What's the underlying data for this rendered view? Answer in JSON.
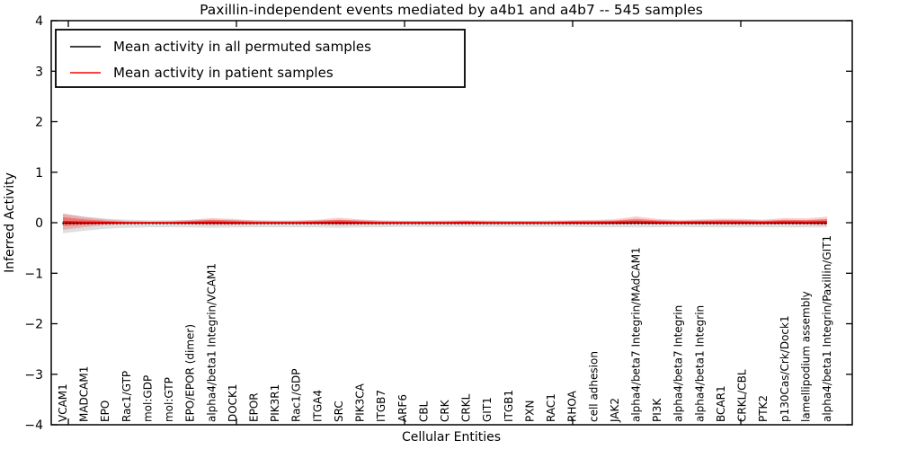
{
  "chart_data": {
    "type": "line",
    "title": "Paxillin-independent events mediated by a4b1 and a4b7 -- 545 samples",
    "xlabel": "Cellular Entities",
    "ylabel": "Inferred Activity",
    "ylim": [
      -4,
      4
    ],
    "yticks": [
      4,
      3,
      2,
      1,
      0,
      -1,
      -2,
      -3,
      -4
    ],
    "grid": false,
    "legend_position": "upper left",
    "categories": [
      "VCAM1",
      "MADCAM1",
      "EPO",
      "Rac1/GTP",
      "mol:GDP",
      "mol:GTP",
      "EPO/EPOR (dimer)",
      "alpha4/beta1 Integrin/VCAM1",
      "DOCK1",
      "EPOR",
      "PIK3R1",
      "Rac1/GDP",
      "ITGA4",
      "SRC",
      "PIK3CA",
      "ITGB7",
      "ARF6",
      "CBL",
      "CRK",
      "CRKL",
      "GIT1",
      "ITGB1",
      "PXN",
      "RAC1",
      "RHOA",
      "cell adhesion",
      "JAK2",
      "alpha4/beta7 Integrin/MAdCAM1",
      "PI3K",
      "alpha4/beta7 Integrin",
      "alpha4/beta1 Integrin",
      "BCAR1",
      "CRKL/CBL",
      "PTK2",
      "p130Cas/Crk/Dock1",
      "lamellipodium assembly",
      "alpha4/beta1 Integrin/Paxillin/GIT1"
    ],
    "series": [
      {
        "name": "Mean activity in all permuted samples",
        "color": "#000000",
        "band_color": "rgba(128,128,128,0.25)",
        "values": [
          -0.01,
          -0.01,
          -0.01,
          -0.01,
          -0.01,
          -0.01,
          -0.01,
          -0.01,
          -0.01,
          -0.01,
          -0.01,
          -0.01,
          -0.01,
          -0.01,
          -0.01,
          -0.01,
          -0.01,
          -0.01,
          -0.01,
          -0.01,
          -0.01,
          -0.01,
          -0.01,
          -0.01,
          -0.01,
          -0.01,
          -0.01,
          -0.01,
          -0.01,
          -0.01,
          -0.01,
          -0.01,
          -0.01,
          -0.01,
          -0.01,
          -0.01,
          -0.01
        ],
        "band_upper": [
          0.19,
          0.13,
          0.09,
          0.07,
          0.06,
          0.06,
          0.065,
          0.07,
          0.065,
          0.06,
          0.055,
          0.055,
          0.06,
          0.065,
          0.06,
          0.055,
          0.05,
          0.05,
          0.05,
          0.05,
          0.05,
          0.05,
          0.05,
          0.05,
          0.05,
          0.055,
          0.055,
          0.06,
          0.055,
          0.05,
          0.055,
          0.06,
          0.06,
          0.055,
          0.06,
          0.06,
          0.065
        ],
        "band_lower": [
          0.2,
          0.15,
          0.11,
          0.09,
          0.08,
          0.08,
          0.085,
          0.09,
          0.085,
          0.08,
          0.08,
          0.08,
          0.085,
          0.09,
          0.085,
          0.08,
          0.075,
          0.075,
          0.075,
          0.075,
          0.075,
          0.075,
          0.075,
          0.075,
          0.075,
          0.08,
          0.08,
          0.085,
          0.08,
          0.075,
          0.08,
          0.085,
          0.085,
          0.08,
          0.085,
          0.085,
          0.085
        ]
      },
      {
        "name": "Mean activity in patient samples",
        "color": "#ff0000",
        "band_color": "rgba(255,0,0,0.2)",
        "band_inner_color": "rgba(255,0,0,0.35)",
        "values": [
          0.02,
          0.01,
          0.005,
          0.0,
          0.0,
          0.0,
          0.005,
          0.01,
          0.005,
          0.0,
          0.0,
          0.0,
          0.005,
          0.01,
          0.005,
          0.0,
          0.0,
          0.0,
          0.0,
          0.005,
          0.0,
          0.0,
          0.0,
          0.0,
          0.005,
          0.005,
          0.01,
          0.02,
          0.01,
          0.005,
          0.01,
          0.01,
          0.01,
          0.005,
          0.015,
          0.01,
          0.02
        ],
        "band_upper": [
          0.16,
          0.105,
          0.06,
          0.035,
          0.025,
          0.03,
          0.05,
          0.085,
          0.07,
          0.045,
          0.035,
          0.04,
          0.055,
          0.09,
          0.06,
          0.04,
          0.035,
          0.035,
          0.04,
          0.045,
          0.04,
          0.035,
          0.035,
          0.04,
          0.045,
          0.05,
          0.06,
          0.105,
          0.065,
          0.05,
          0.055,
          0.07,
          0.065,
          0.055,
          0.08,
          0.075,
          0.1
        ],
        "band_lower": [
          0.16,
          0.1,
          0.055,
          0.03,
          0.02,
          0.025,
          0.04,
          0.06,
          0.05,
          0.035,
          0.03,
          0.03,
          0.04,
          0.06,
          0.045,
          0.035,
          0.03,
          0.03,
          0.03,
          0.035,
          0.03,
          0.03,
          0.03,
          0.03,
          0.035,
          0.04,
          0.04,
          0.045,
          0.04,
          0.035,
          0.04,
          0.05,
          0.05,
          0.045,
          0.05,
          0.05,
          0.075
        ]
      }
    ]
  },
  "legend": {
    "entries": [
      {
        "label": "Mean activity in all permuted samples",
        "color": "#000000"
      },
      {
        "label": "Mean activity in patient samples",
        "color": "#ff0000"
      }
    ]
  }
}
